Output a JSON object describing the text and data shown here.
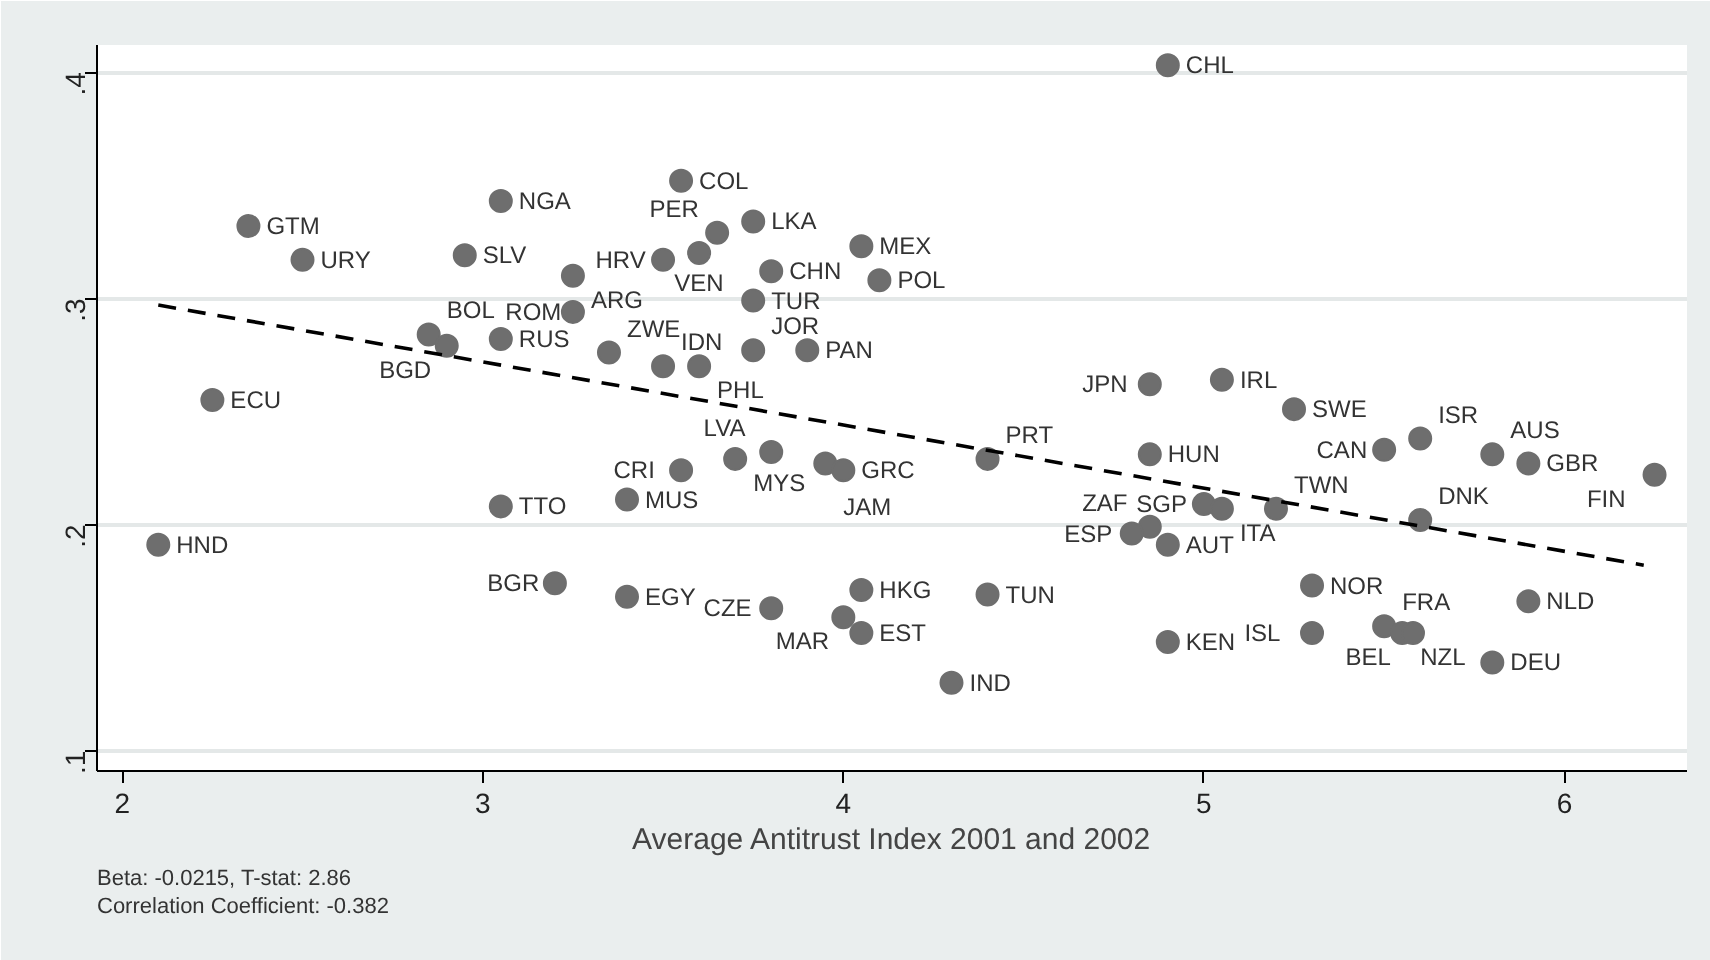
{
  "chart_data": {
    "type": "scatter",
    "xlabel": "Average Antitrust Index 2001 and 2002",
    "xlim": [
      1.93,
      6.34
    ],
    "ylim": [
      0.091,
      0.412
    ],
    "xticks": [
      2,
      3,
      4,
      5,
      6
    ],
    "yticks": [
      {
        "value": 0.1,
        "label": ".1"
      },
      {
        "value": 0.2,
        "label": ".2"
      },
      {
        "value": 0.3,
        "label": ".3"
      },
      {
        "value": 0.4,
        "label": ".4"
      }
    ],
    "grid": "y",
    "annotations": [
      "Beta: -0.0215, T-stat: 2.86",
      "Correlation Coefficient: -0.382"
    ],
    "series": [
      {
        "color": "#6e6e6e",
        "marker": "circle",
        "x": [
          4.9,
          3.55,
          3.05,
          2.35,
          3.75,
          3.65,
          4.05,
          2.5,
          2.95,
          3.6,
          3.5,
          3.8,
          4.1,
          3.25,
          3.25,
          3.75,
          2.85,
          2.9,
          3.05,
          3.35,
          3.5,
          3.6,
          3.75,
          3.9,
          2.25,
          3.8,
          3.7,
          3.55,
          3.95,
          4.0,
          4.4,
          4.85,
          5.05,
          5.25,
          4.85,
          5.5,
          5.6,
          5.8,
          5.9,
          6.25,
          5.0,
          5.05,
          5.2,
          5.6,
          4.85,
          4.8,
          4.9,
          3.05,
          3.4,
          2.1,
          3.2,
          3.4,
          3.8,
          4.05,
          4.0,
          4.05,
          4.4,
          4.3,
          4.9,
          5.3,
          5.3,
          5.5,
          5.55,
          5.58,
          5.9,
          5.8
        ],
        "values": [
          0.403,
          0.352,
          0.343,
          0.332,
          0.334,
          0.329,
          0.323,
          0.317,
          0.319,
          0.32,
          0.317,
          0.312,
          0.308,
          0.31,
          0.294,
          0.299,
          0.284,
          0.279,
          0.282,
          0.276,
          0.27,
          0.27,
          0.277,
          0.277,
          0.255,
          0.232,
          0.229,
          0.224,
          0.227,
          0.224,
          0.229,
          0.262,
          0.264,
          0.251,
          0.231,
          0.233,
          0.238,
          0.231,
          0.227,
          0.222,
          0.209,
          0.207,
          0.207,
          0.202,
          0.199,
          0.196,
          0.191,
          0.208,
          0.211,
          0.191,
          0.174,
          0.168,
          0.163,
          0.171,
          0.159,
          0.152,
          0.169,
          0.13,
          0.148,
          0.173,
          0.152,
          0.155,
          0.152,
          0.152,
          0.166,
          0.139
        ],
        "value_labels": [
          "CHL",
          "COL",
          "NGA",
          "GTM",
          "LKA",
          "PER",
          "MEX",
          "URY",
          "SLV",
          "VEN",
          "HRV",
          "CHN",
          "POL",
          "ARG",
          "ROM",
          "TUR",
          "BOL",
          "BGD",
          "RUS",
          "ZWE",
          "IDN",
          "PHL",
          "JOR",
          "PAN",
          "ECU",
          "LVA",
          "MYS",
          "CRI",
          "JAM",
          "GRC",
          "PRT",
          "JPN",
          "IRL",
          "SWE",
          "HUN",
          "CAN",
          "ISR",
          "AUS",
          "GBR",
          "FIN",
          "SGP",
          "ITA",
          "TWN",
          "DNK",
          "ZAF",
          "ESP",
          "AUT",
          "TTO",
          "MUS",
          "HND",
          "BGR",
          "EGY",
          "CZE",
          "HKG",
          "MAR",
          "EST",
          "TUN",
          "IND",
          "KEN",
          "NOR",
          "ISL",
          "FRA",
          "NZL",
          "BEL",
          "NLD",
          "DEU"
        ]
      },
      {
        "type": "line",
        "color": "#000000",
        "line_style": "dashed",
        "marker": "none",
        "x": [
          2.1,
          6.22
        ],
        "values": [
          0.297,
          0.182
        ]
      }
    ]
  }
}
